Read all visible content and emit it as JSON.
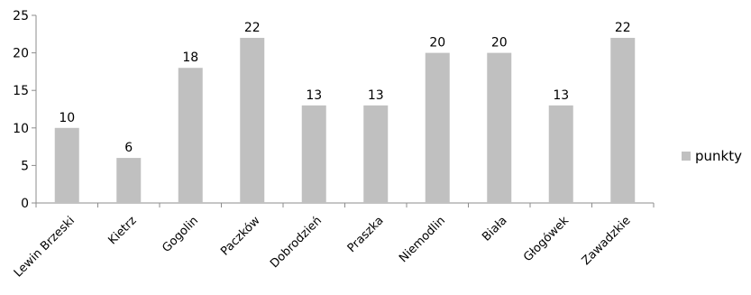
{
  "chart_data": {
    "type": "bar",
    "categories": [
      "Lewin Brzeski",
      "Kietrz",
      "Gogolin",
      "Paczków",
      "Dobrodzień",
      "Praszka",
      "Niemodlin",
      "Biała",
      "Głogówek",
      "Zawadzkie"
    ],
    "series": [
      {
        "name": "punkty",
        "values": [
          10,
          6,
          18,
          22,
          13,
          13,
          20,
          20,
          13,
          22
        ]
      }
    ],
    "ylim": [
      0,
      25
    ],
    "yticks": [
      0,
      5,
      10,
      15,
      20,
      25
    ],
    "data_labels": true,
    "grid": false,
    "legend_position": "right",
    "title": "",
    "xlabel": "",
    "ylabel": "",
    "colors": {
      "bar": "#c0c0c0",
      "axis": "#8c8c8c",
      "text": "#000000"
    }
  }
}
